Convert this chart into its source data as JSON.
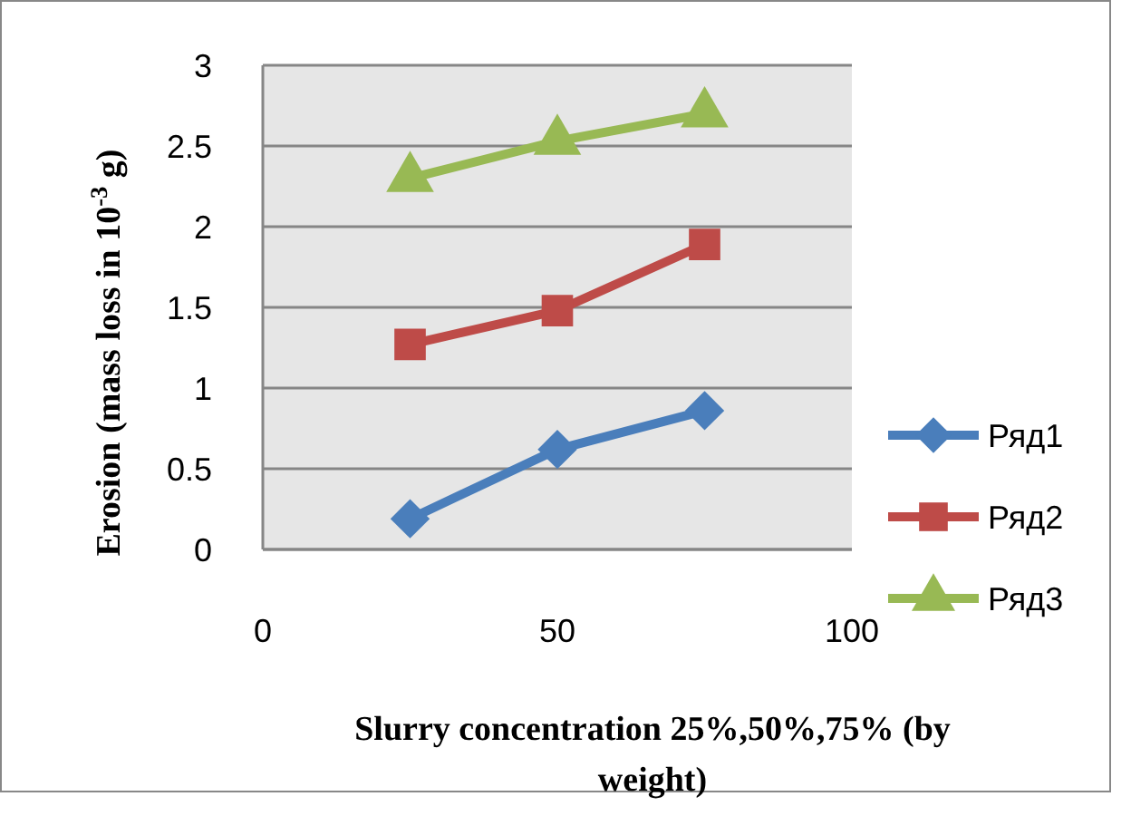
{
  "chart_data": {
    "type": "line",
    "xlabel": "Slurry concentration 25%,50%,75% (by weight)",
    "ylabel": "Erosion (mass loss in 10$^{-3}$ g)",
    "x": [
      25,
      50,
      75
    ],
    "xlim": [
      0,
      100
    ],
    "xticks": [
      0,
      50,
      100
    ],
    "ylim": [
      0,
      3
    ],
    "yticks": [
      0,
      0.5,
      1,
      1.5,
      2,
      2.5,
      3
    ],
    "grid": "y",
    "legend": "right",
    "series": [
      {
        "name": "Ряд1",
        "color": "#4a7ebb",
        "marker": "diamond",
        "values": [
          0.19,
          0.62,
          0.86
        ]
      },
      {
        "name": "Ряд2",
        "color": "#be4b48",
        "marker": "square",
        "values": [
          1.27,
          1.48,
          1.89
        ]
      },
      {
        "name": "Ряд3",
        "color": "#98b954",
        "marker": "triangle",
        "values": [
          2.3,
          2.53,
          2.7
        ]
      }
    ]
  }
}
